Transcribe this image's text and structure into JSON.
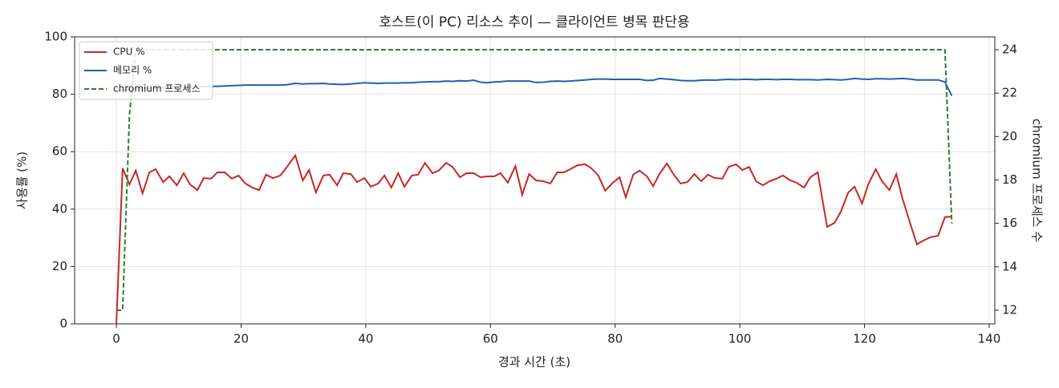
{
  "chart_data": {
    "type": "line",
    "title": "호스트(이 PC) 리소스 추이 — 클라이언트 병목 판단용",
    "xlabel": "경과 시간 (초)",
    "ylabel": "사용률 (%)",
    "y2label": "chromium 프로세스 수",
    "x": [
      0,
      1.0,
      2.1,
      3.1,
      4.2,
      5.3,
      6.3,
      7.5,
      8.5,
      9.7,
      10.8,
      11.8,
      13.0,
      14.0,
      15.2,
      16.2,
      17.4,
      18.5,
      19.6,
      20.7,
      21.8,
      22.9,
      24.0,
      25.1,
      26.3,
      27.3,
      28.7,
      29.9,
      30.9,
      32.0,
      33.2,
      34.2,
      35.4,
      36.4,
      37.6,
      38.6,
      39.8,
      40.8,
      42.0,
      43.0,
      44.1,
      45.2,
      46.2,
      47.4,
      48.4,
      49.5,
      50.7,
      51.7,
      52.9,
      53.9,
      55.1,
      56.2,
      57.3,
      58.4,
      59.5,
      60.6,
      61.6,
      62.8,
      64.0,
      65.1,
      66.2,
      67.3,
      68.5,
      69.6,
      70.7,
      71.8,
      72.8,
      74.0,
      75.2,
      76.2,
      77.3,
      78.4,
      79.5,
      80.7,
      81.7,
      82.9,
      83.9,
      85.1,
      86.1,
      87.1,
      88.3,
      89.4,
      90.5,
      91.6,
      92.7,
      93.8,
      94.9,
      96.0,
      97.2,
      98.2,
      99.4,
      100.4,
      101.5,
      102.6,
      103.7,
      104.8,
      105.9,
      106.9,
      108.1,
      109.1,
      110.3,
      111.3,
      112.5,
      114.0,
      115.2,
      116.2,
      117.4,
      118.4,
      119.6,
      120.6,
      121.8,
      122.8,
      124.0,
      125.1,
      126.1,
      127.3,
      128.4,
      129.5,
      130.6,
      131.8,
      132.9,
      134.0
    ],
    "series": [
      {
        "name": "CPU %",
        "color": "#c62828",
        "axis": "y",
        "linestyle": "solid",
        "values": [
          0,
          54.2,
          48.6,
          53.4,
          45.5,
          52.8,
          53.9,
          49.4,
          51.4,
          48.3,
          52.5,
          48.6,
          46.6,
          50.8,
          50.6,
          52.8,
          52.8,
          50.6,
          51.7,
          48.9,
          47.5,
          46.6,
          52.0,
          50.8,
          51.7,
          54.5,
          58.7,
          50.0,
          53.6,
          45.8,
          51.7,
          52.0,
          48.3,
          52.5,
          52.2,
          49.4,
          50.8,
          47.8,
          48.9,
          51.7,
          47.5,
          52.5,
          47.8,
          51.7,
          52.0,
          56.1,
          52.5,
          53.4,
          56.1,
          54.7,
          51.1,
          52.5,
          52.5,
          51.1,
          51.4,
          51.4,
          52.5,
          49.2,
          55.0,
          45.0,
          52.2,
          50.0,
          49.7,
          48.9,
          52.8,
          52.8,
          53.9,
          55.3,
          55.6,
          54.2,
          51.7,
          46.4,
          48.9,
          51.1,
          44.1,
          52.0,
          53.4,
          51.4,
          48.0,
          52.2,
          55.9,
          52.0,
          48.9,
          49.4,
          52.2,
          49.7,
          52.0,
          50.8,
          50.6,
          54.7,
          55.6,
          53.6,
          54.7,
          49.7,
          48.3,
          49.7,
          50.6,
          51.7,
          50.0,
          49.2,
          47.5,
          51.1,
          52.8,
          33.8,
          35.2,
          39.1,
          45.8,
          47.8,
          41.9,
          48.6,
          53.9,
          49.7,
          46.6,
          52.2,
          43.6,
          35.2,
          27.7,
          29.1,
          30.2,
          30.7,
          37.2,
          37.4
        ]
      },
      {
        "name": "메모리 %",
        "color": "#1f62b0",
        "axis": "y",
        "linestyle": "solid",
        "values": [
          81.3,
          81.5,
          81.7,
          81.9,
          82.0,
          82.1,
          82.2,
          82.3,
          82.4,
          82.5,
          82.5,
          82.6,
          82.6,
          82.7,
          82.7,
          82.8,
          82.9,
          83.0,
          83.1,
          83.2,
          83.2,
          83.2,
          83.2,
          83.2,
          83.2,
          83.3,
          83.8,
          83.6,
          83.7,
          83.7,
          83.8,
          83.6,
          83.5,
          83.4,
          83.6,
          83.8,
          84.0,
          83.9,
          83.8,
          83.9,
          83.9,
          83.9,
          84.0,
          84.0,
          84.2,
          84.3,
          84.4,
          84.4,
          84.6,
          84.5,
          84.7,
          84.6,
          84.9,
          84.2,
          84.0,
          84.3,
          84.4,
          84.6,
          84.6,
          84.6,
          84.6,
          84.1,
          84.2,
          84.5,
          84.6,
          84.5,
          84.6,
          84.8,
          85.0,
          85.2,
          85.3,
          85.3,
          85.2,
          85.2,
          85.2,
          85.2,
          85.2,
          84.8,
          84.9,
          85.5,
          85.3,
          85.1,
          84.8,
          84.7,
          84.7,
          84.9,
          85.0,
          84.9,
          85.1,
          85.2,
          85.1,
          85.2,
          85.2,
          85.1,
          85.2,
          85.2,
          85.1,
          85.2,
          85.2,
          85.1,
          85.1,
          85.1,
          85.0,
          85.2,
          85.1,
          85.0,
          85.2,
          85.5,
          85.3,
          85.2,
          85.4,
          85.4,
          85.3,
          85.4,
          85.5,
          85.3,
          85.0,
          85.0,
          85.0,
          85.0,
          84.3,
          79.5
        ]
      },
      {
        "name": "chromium 프로세스",
        "color": "#2e7d32",
        "axis": "y2",
        "linestyle": "dashed",
        "values": [
          12,
          12,
          21,
          24,
          24,
          24,
          24,
          24,
          24,
          24,
          24,
          24,
          24,
          24,
          24,
          24,
          24,
          24,
          24,
          24,
          24,
          24,
          24,
          24,
          24,
          24,
          24,
          24,
          24,
          24,
          24,
          24,
          24,
          24,
          24,
          24,
          24,
          24,
          24,
          24,
          24,
          24,
          24,
          24,
          24,
          24,
          24,
          24,
          24,
          24,
          24,
          24,
          24,
          24,
          24,
          24,
          24,
          24,
          24,
          24,
          24,
          24,
          24,
          24,
          24,
          24,
          24,
          24,
          24,
          24,
          24,
          24,
          24,
          24,
          24,
          24,
          24,
          24,
          24,
          24,
          24,
          24,
          24,
          24,
          24,
          24,
          24,
          24,
          24,
          24,
          24,
          24,
          24,
          24,
          24,
          24,
          24,
          24,
          24,
          24,
          24,
          24,
          24,
          24,
          24,
          24,
          24,
          24,
          24,
          24,
          24,
          24,
          24,
          24,
          24,
          24,
          24,
          24,
          24,
          24,
          24,
          16
        ]
      }
    ],
    "xlim": [
      -6.7,
      140.9
    ],
    "xticks": [
      0,
      20,
      40,
      60,
      80,
      100,
      120,
      140
    ],
    "ylim": [
      0,
      100
    ],
    "yticks": [
      0,
      20,
      40,
      60,
      80,
      100
    ],
    "y2lim": [
      11.37,
      24.59
    ],
    "y2ticks": [
      12,
      14,
      16,
      18,
      20,
      22,
      24
    ],
    "grid": true,
    "legend": "upper-left"
  }
}
